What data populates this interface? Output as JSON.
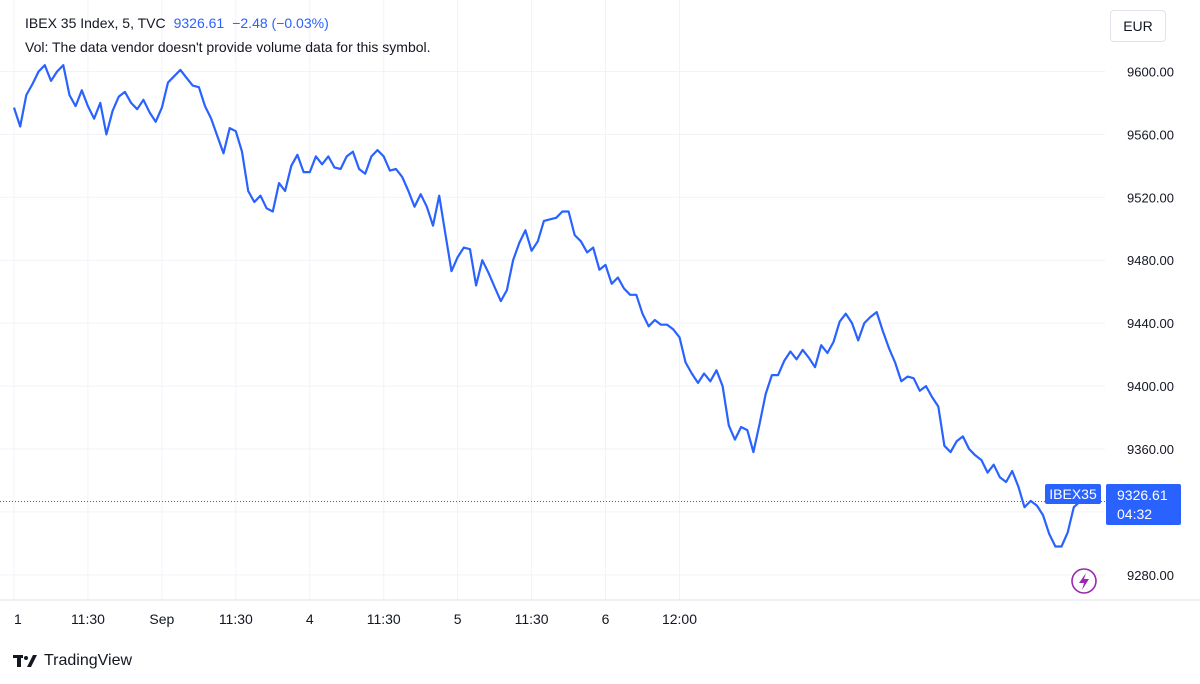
{
  "legend": {
    "symbol_line": "IBEX 35 Index, 5, TVC",
    "last_price": "9326.61",
    "change": "−2.48 (−0.03%)",
    "volume_note": "Vol: The data vendor doesn't provide volume data for this symbol."
  },
  "currency_button": "EUR",
  "brand": "TradingView",
  "price_badge": {
    "symbol": "IBEX35",
    "price": "9326.61",
    "countdown": "04:32"
  },
  "colors": {
    "line": "#2962ff",
    "badge": "#2962ff",
    "grid": "#f0f3fa",
    "lightning": "#9c27b0"
  },
  "icons": {
    "lightning": "lightning-icon",
    "logo": "tradingview-logo-icon"
  },
  "chart_data": {
    "type": "line",
    "title": "IBEX 35 Index, 5, TVC",
    "xlabel": "",
    "ylabel": "",
    "ylim": [
      9264,
      9620
    ],
    "y_ticks": [
      9280,
      9320,
      9360,
      9400,
      9440,
      9480,
      9520,
      9560,
      9600
    ],
    "y_tick_labels": [
      "9280.00",
      "9360.00",
      "9400.00",
      "9440.00",
      "9480.00",
      "9520.00",
      "9560.00",
      "9600.00"
    ],
    "x_ticks": [
      "1",
      "11:30",
      "Sep",
      "11:30",
      "4",
      "11:30",
      "5",
      "11:30",
      "6",
      "12:00"
    ],
    "x_tick_positions": [
      0,
      12,
      24,
      36,
      48,
      60,
      72,
      84,
      96,
      108
    ],
    "last_value": 9326.61,
    "grid": true,
    "series": [
      {
        "values": [
          9577,
          9565,
          9585,
          9592,
          9600,
          9604,
          9594,
          9600,
          9604,
          9585,
          9578,
          9588,
          9578,
          9570,
          9580,
          9560,
          9575,
          9584,
          9587,
          9580,
          9576,
          9582,
          9574,
          9568,
          9577,
          9593,
          9597,
          9601,
          9596,
          9591,
          9590,
          9578,
          9570,
          9559,
          9548,
          9564,
          9562,
          9549,
          9524,
          9517,
          9521,
          9513,
          9511,
          9529,
          9524,
          9540,
          9547,
          9536,
          9536,
          9546,
          9541,
          9546,
          9539,
          9538,
          9546,
          9549,
          9538,
          9535,
          9546,
          9550,
          9546,
          9537,
          9538,
          9533,
          9524,
          9514,
          9522,
          9514,
          9502,
          9521,
          9497,
          9473,
          9482,
          9488,
          9487,
          9464,
          9480,
          9472,
          9463,
          9454,
          9461,
          9480,
          9491,
          9499,
          9486,
          9492,
          9505,
          9506,
          9507,
          9511,
          9511,
          9496,
          9492,
          9485,
          9488,
          9474,
          9477,
          9465,
          9469,
          9462,
          9458,
          9458,
          9446,
          9438,
          9442,
          9439,
          9439,
          9436,
          9431,
          9415,
          9408,
          9402,
          9408,
          9403,
          9410,
          9400,
          9375,
          9366,
          9374,
          9372,
          9358,
          9376,
          9395,
          9407,
          9407,
          9416,
          9422,
          9417,
          9423,
          9418,
          9412,
          9426,
          9421,
          9428,
          9441,
          9446,
          9440,
          9429,
          9440,
          9444,
          9447,
          9435,
          9424,
          9415,
          9403,
          9406,
          9405,
          9397,
          9400,
          9393,
          9387,
          9362,
          9358,
          9365,
          9368,
          9360,
          9356,
          9353,
          9345,
          9350,
          9342,
          9339,
          9346,
          9336,
          9323,
          9327,
          9324,
          9318,
          9306,
          9298,
          9298,
          9307,
          9323,
          9326.61
        ]
      }
    ]
  }
}
